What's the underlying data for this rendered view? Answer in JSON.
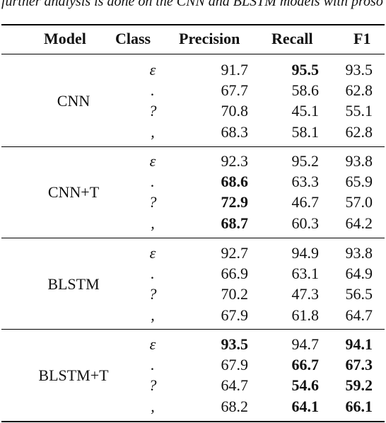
{
  "caption": "further analysis is done on the CNN and BLSTM models with prosodic features, especially in",
  "table": {
    "headers": [
      "Model",
      "Class",
      "Precision",
      "Recall",
      "F1"
    ],
    "groups": [
      {
        "model": "CNN",
        "rows": [
          {
            "cls": "ε",
            "precision": "91.7",
            "recall": "95.5",
            "f1": "93.5",
            "bold": [
              "recall"
            ]
          },
          {
            "cls": ".",
            "precision": "67.7",
            "recall": "58.6",
            "f1": "62.8",
            "bold": []
          },
          {
            "cls": "?",
            "precision": "70.8",
            "recall": "45.1",
            "f1": "55.1",
            "bold": []
          },
          {
            "cls": ",",
            "precision": "68.3",
            "recall": "58.1",
            "f1": "62.8",
            "bold": []
          }
        ]
      },
      {
        "model": "CNN+T",
        "rows": [
          {
            "cls": "ε",
            "precision": "92.3",
            "recall": "95.2",
            "f1": "93.8",
            "bold": []
          },
          {
            "cls": ".",
            "precision": "68.6",
            "recall": "63.3",
            "f1": "65.9",
            "bold": [
              "precision"
            ]
          },
          {
            "cls": "?",
            "precision": "72.9",
            "recall": "46.7",
            "f1": "57.0",
            "bold": [
              "precision"
            ]
          },
          {
            "cls": ",",
            "precision": "68.7",
            "recall": "60.3",
            "f1": "64.2",
            "bold": [
              "precision"
            ]
          }
        ]
      },
      {
        "model": "BLSTM",
        "rows": [
          {
            "cls": "ε",
            "precision": "92.7",
            "recall": "94.9",
            "f1": "93.8",
            "bold": []
          },
          {
            "cls": ".",
            "precision": "66.9",
            "recall": "63.1",
            "f1": "64.9",
            "bold": []
          },
          {
            "cls": "?",
            "precision": "70.2",
            "recall": "47.3",
            "f1": "56.5",
            "bold": []
          },
          {
            "cls": ",",
            "precision": "67.9",
            "recall": "61.8",
            "f1": "64.7",
            "bold": []
          }
        ]
      },
      {
        "model": "BLSTM+T",
        "rows": [
          {
            "cls": "ε",
            "precision": "93.5",
            "recall": "94.7",
            "f1": "94.1",
            "bold": [
              "precision",
              "f1"
            ]
          },
          {
            "cls": ".",
            "precision": "67.9",
            "recall": "66.7",
            "f1": "67.3",
            "bold": [
              "recall",
              "f1"
            ]
          },
          {
            "cls": "?",
            "precision": "64.7",
            "recall": "54.6",
            "f1": "59.2",
            "bold": [
              "recall",
              "f1"
            ]
          },
          {
            "cls": ",",
            "precision": "68.2",
            "recall": "64.1",
            "f1": "66.1",
            "bold": [
              "recall",
              "f1"
            ]
          }
        ]
      }
    ]
  }
}
